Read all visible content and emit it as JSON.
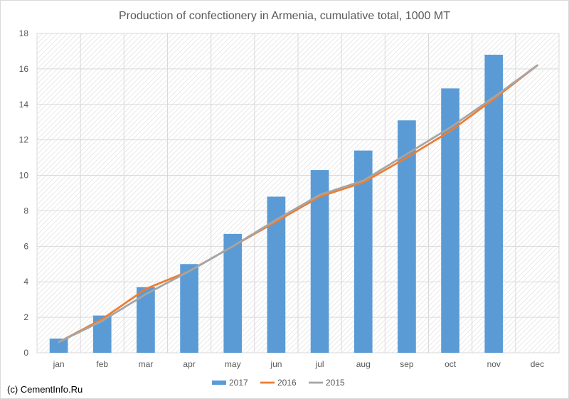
{
  "chart_data": {
    "type": "bar",
    "title": "Production of confectionery in Armenia, cumulative total, 1000 MT",
    "xlabel": "",
    "ylabel": "",
    "ylim": [
      0,
      18
    ],
    "yticks": [
      0,
      2,
      4,
      6,
      8,
      10,
      12,
      14,
      16,
      18
    ],
    "categories": [
      "jan",
      "feb",
      "mar",
      "apr",
      "may",
      "jun",
      "jul",
      "aug",
      "sep",
      "oct",
      "nov",
      "dec"
    ],
    "series": [
      {
        "name": "2017",
        "type": "bar",
        "color": "#5b9bd5",
        "values": [
          0.8,
          2.1,
          3.7,
          5.0,
          6.7,
          8.8,
          10.3,
          11.4,
          13.1,
          14.9,
          16.8,
          null
        ]
      },
      {
        "name": "2016",
        "type": "line",
        "color": "#ed7d31",
        "values": [
          0.6,
          1.9,
          3.6,
          4.6,
          6.0,
          7.4,
          8.8,
          9.6,
          11.0,
          12.5,
          14.3,
          16.2
        ]
      },
      {
        "name": "2015",
        "type": "line",
        "color": "#a5a5a5",
        "values": [
          0.6,
          1.8,
          3.3,
          4.6,
          6.0,
          7.5,
          8.9,
          9.7,
          11.2,
          12.7,
          14.4,
          16.2
        ]
      }
    ],
    "grid": true,
    "legend": "bottom"
  },
  "credit": "(c) CementInfo.Ru"
}
